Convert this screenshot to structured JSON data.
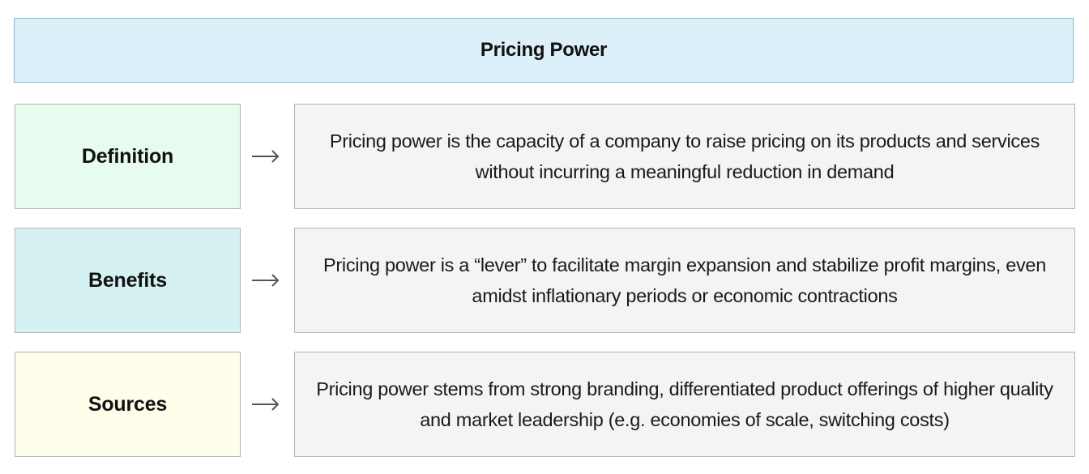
{
  "title": "Pricing Power",
  "rows": [
    {
      "label": "Definition",
      "description": "Pricing power is the capacity of a company to raise pricing on its products and services without incurring a meaningful reduction in demand",
      "label_color": "#e7fbee"
    },
    {
      "label": "Benefits",
      "description": "Pricing power is a “lever” to facilitate margin expansion and stabilize profit margins, even amidst inflationary periods or economic contractions",
      "label_color": "#d6f1f1"
    },
    {
      "label": "Sources",
      "description": "Pricing power stems from strong branding, differentiated product offerings of higher quality and market leadership (e.g. economies of scale, switching costs)",
      "label_color": "#fdfde9"
    }
  ],
  "colors": {
    "header_background": "#dcf0fa",
    "description_background": "#f3f4f6",
    "arrow": "#555555"
  },
  "icons": {
    "connector": "right-arrow-icon"
  }
}
